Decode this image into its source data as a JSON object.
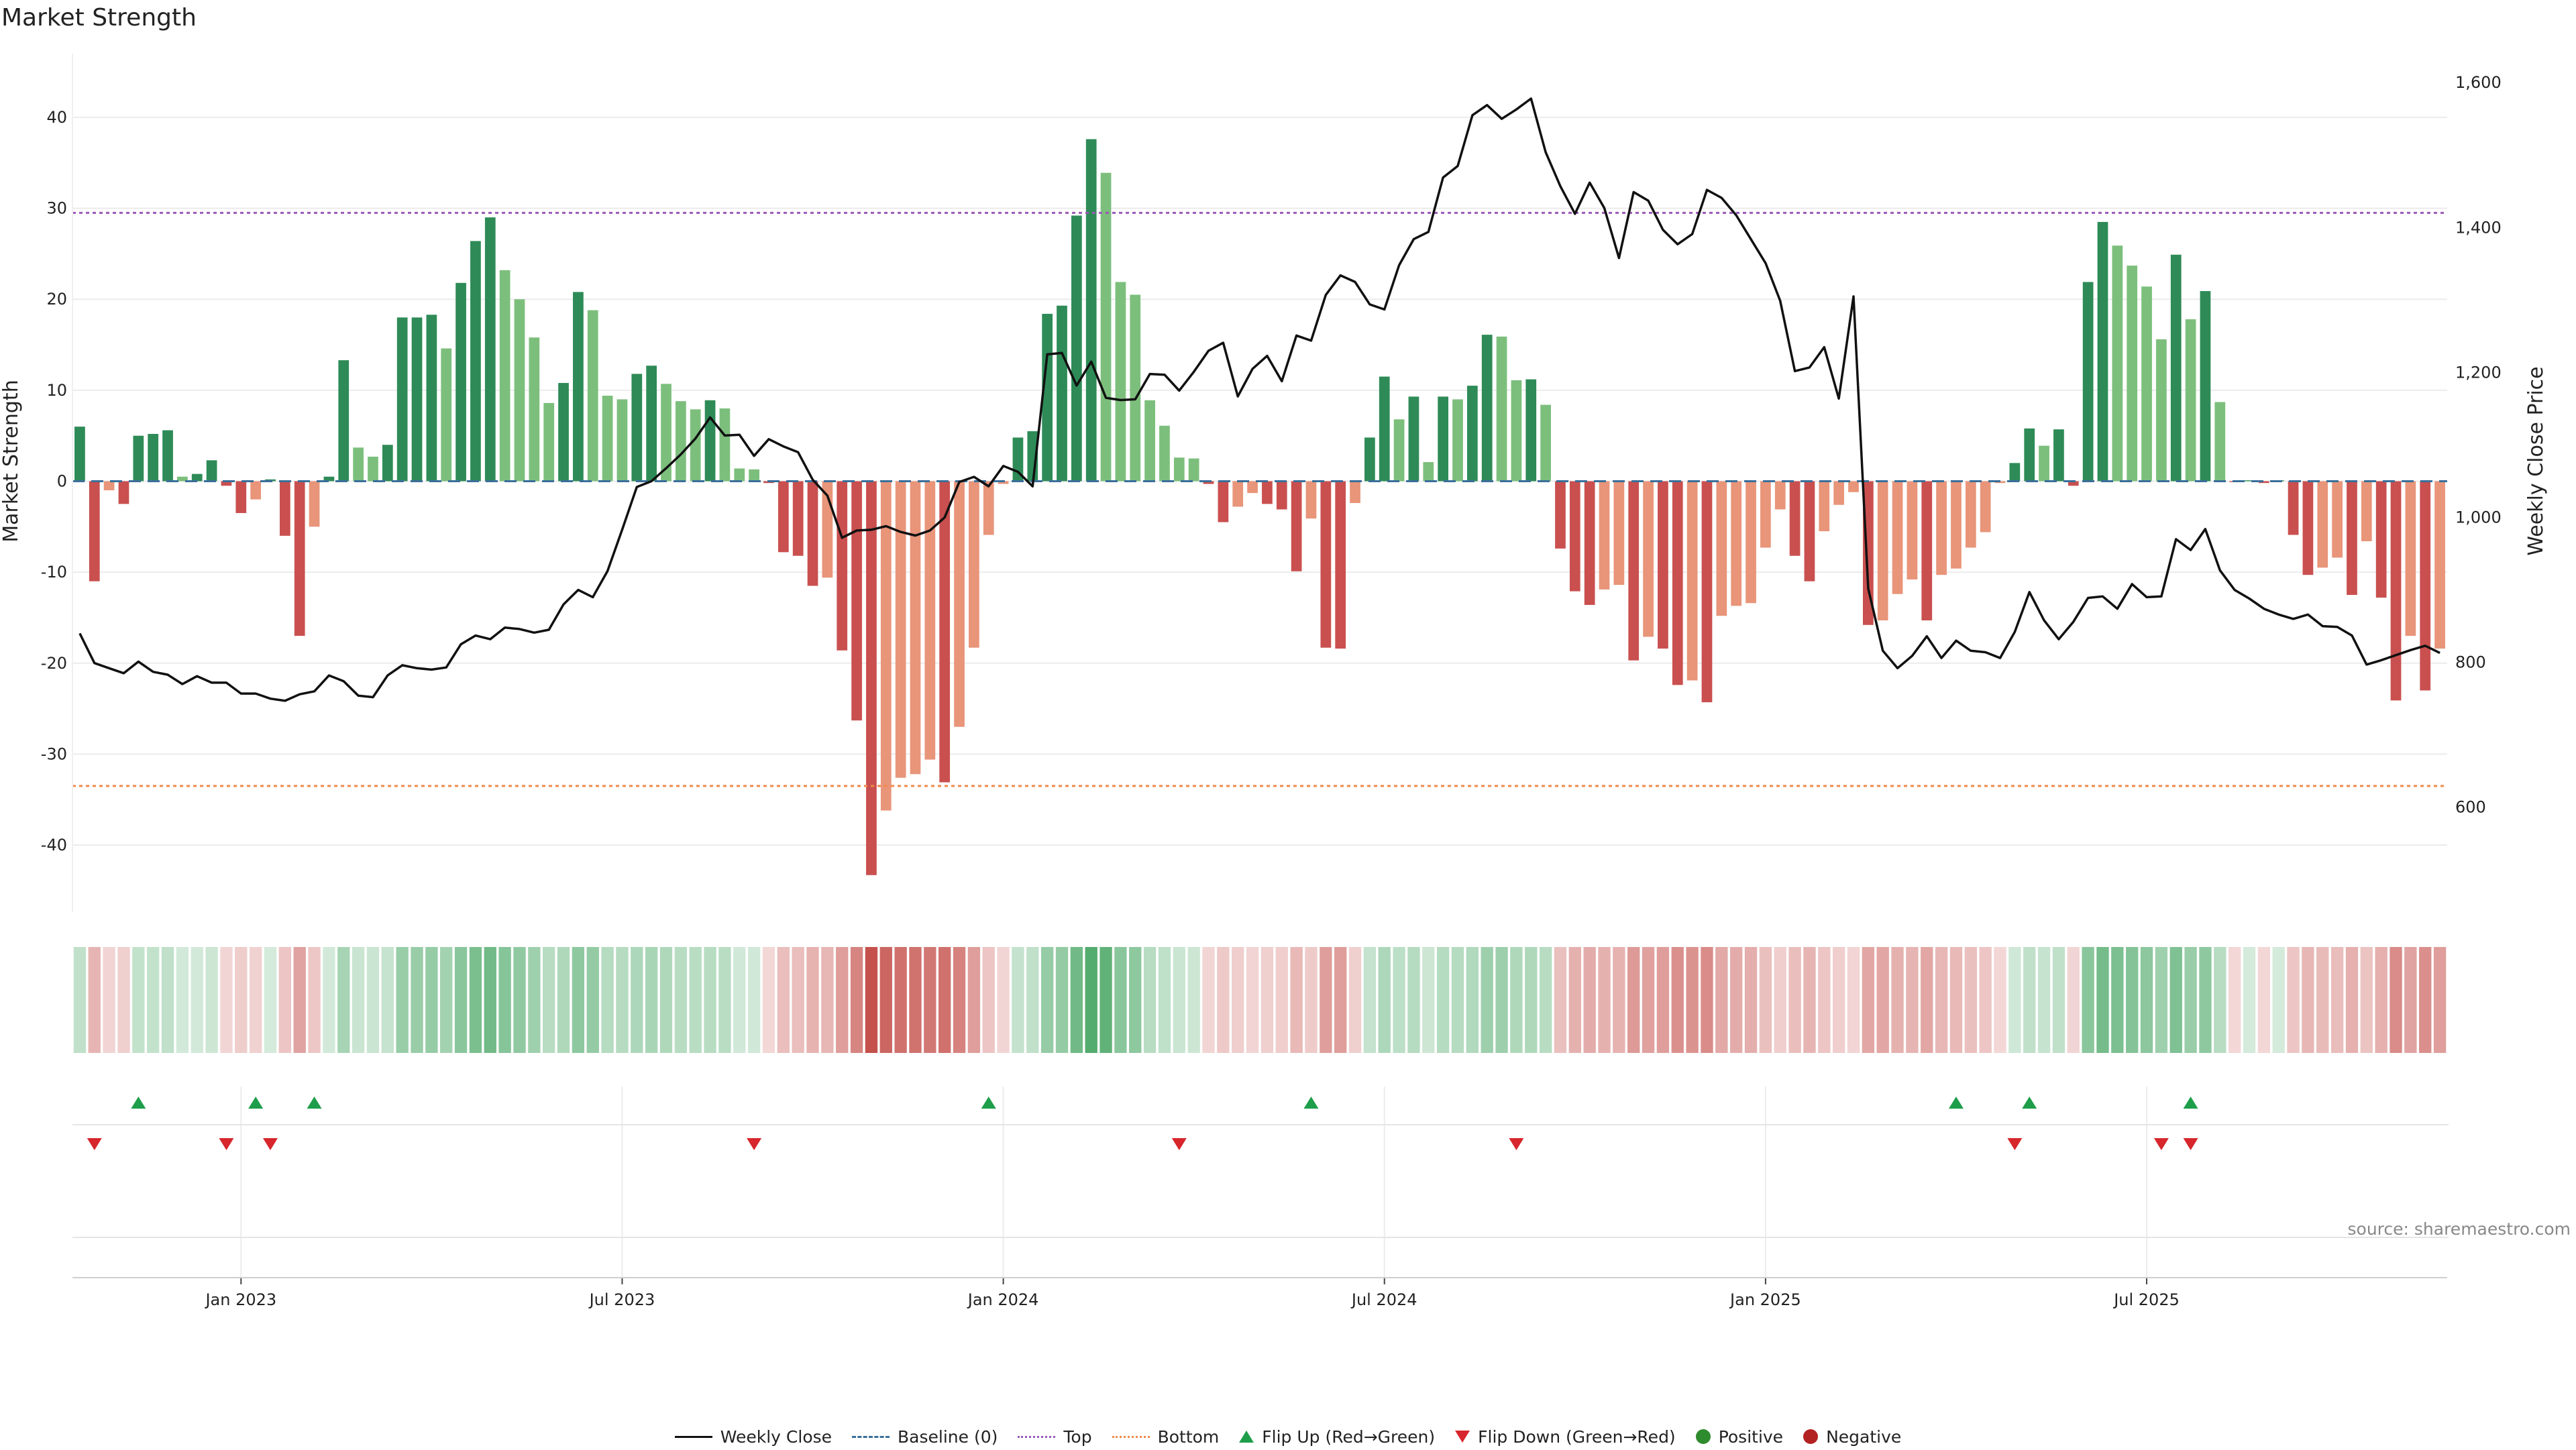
{
  "title": "Market Strength",
  "source": "source: sharemaestro.com",
  "colors": {
    "pos_strong": "#2e8b57",
    "pos_light": "#7cbf7c",
    "neg_strong": "#c9504f",
    "neg_light": "#e8957a",
    "top_line": "#9b59b6",
    "bottom_line": "#f08a4b",
    "baseline": "#3a6f9a",
    "price_line": "#111111",
    "flip_up": "#1e9e4a",
    "flip_down": "#d7262c"
  },
  "legend": [
    {
      "id": "weekly-close",
      "label": "Weekly Close",
      "marker": "line"
    },
    {
      "id": "baseline",
      "label": "Baseline (0)",
      "marker": "dash"
    },
    {
      "id": "top",
      "label": "Top",
      "marker": "dot-purple"
    },
    {
      "id": "bottom",
      "label": "Bottom",
      "marker": "dot-orange"
    },
    {
      "id": "flip-up",
      "label": "Flip Up (Red→Green)",
      "marker": "tri-up"
    },
    {
      "id": "flip-down",
      "label": "Flip Down (Green→Red)",
      "marker": "tri-down"
    },
    {
      "id": "positive",
      "label": "Positive",
      "marker": "circle-green"
    },
    {
      "id": "negative",
      "label": "Negative",
      "marker": "circle-red"
    }
  ],
  "chart_data": {
    "type": "bar",
    "title": "Market Strength",
    "ylabel": "Market Strength",
    "y2label": "Weekly Close Price",
    "ylim": [
      -47,
      47
    ],
    "y2lim": [
      460,
      1640
    ],
    "yticks": [
      40,
      30,
      20,
      10,
      0,
      -10,
      -20,
      -30,
      -40
    ],
    "y2ticks": [
      {
        "v": 1600,
        "label": "1,600"
      },
      {
        "v": 1400,
        "label": "1,400"
      },
      {
        "v": 1200,
        "label": "1,200"
      },
      {
        "v": 1000,
        "label": "1,000"
      },
      {
        "v": 800,
        "label": "800"
      },
      {
        "v": 600,
        "label": "600"
      }
    ],
    "top_level": 29.5,
    "bottom_level": -33.5,
    "xticks": [
      {
        "week": 11,
        "label": "Jan 2023"
      },
      {
        "week": 37,
        "label": "Jul 2023"
      },
      {
        "week": 63,
        "label": "Jan 2024"
      },
      {
        "week": 89,
        "label": "Jul 2024"
      },
      {
        "week": 115,
        "label": "Jan 2025"
      },
      {
        "week": 141,
        "label": "Jul 2025"
      }
    ],
    "strength": [
      6,
      -11,
      -1,
      -2.5,
      5,
      5.2,
      5.6,
      0.5,
      0.8,
      2.3,
      -0.5,
      -3.5,
      -2,
      0.2,
      -6,
      -17,
      -5,
      0.5,
      13.3,
      3.7,
      2.7,
      4,
      18,
      18,
      18.3,
      14.6,
      21.8,
      26.4,
      29,
      23.2,
      20,
      15.8,
      8.6,
      10.8,
      20.8,
      18.8,
      9.4,
      9,
      11.8,
      12.7,
      10.7,
      8.8,
      7.9,
      8.9,
      8,
      1.4,
      1.3,
      -0.2,
      -7.8,
      -8.2,
      -11.5,
      -10.6,
      -18.6,
      -26.3,
      -43.3,
      -36.2,
      -32.6,
      -32.2,
      -30.6,
      -33.1,
      -27,
      -18.3,
      -5.9,
      -0.3,
      4.8,
      5.5,
      18.4,
      19.3,
      29.2,
      37.6,
      33.9,
      21.9,
      20.5,
      8.9,
      6.1,
      2.6,
      2.5,
      -0.3,
      -4.5,
      -2.8,
      -1.3,
      -2.5,
      -3.1,
      -9.9,
      -4.1,
      -18.3,
      -18.4,
      -2.4,
      4.8,
      11.5,
      6.8,
      9.3,
      2.1,
      9.3,
      9,
      10.5,
      16.1,
      15.9,
      11.1,
      11.2,
      8.4,
      -7.4,
      -12.1,
      -13.6,
      -11.9,
      -11.4,
      -19.7,
      -17.1,
      -18.4,
      -22.4,
      -21.9,
      -24.3,
      -14.8,
      -13.7,
      -13.4,
      -7.3,
      -3.1,
      -8.2,
      -11,
      -5.5,
      -2.6,
      -1.2,
      -15.8,
      -15.3,
      -12.4,
      -10.8,
      -15.3,
      -10.3,
      -9.6,
      -7.3,
      -5.6,
      -0.2,
      2,
      5.8,
      3.9,
      5.7,
      -0.5,
      21.9,
      28.5,
      25.9,
      23.7,
      21.4,
      15.6,
      24.9,
      17.8,
      20.9,
      8.7,
      -0.1,
      0.1,
      -0.2,
      0.1,
      -5.9,
      -10.3,
      -9.5,
      -8.4,
      -12.5,
      -6.6,
      -12.8,
      -24.1,
      -17,
      -23,
      -18.4
    ],
    "price": [
      840,
      799,
      792,
      785,
      801,
      787,
      783,
      770,
      781,
      772,
      772,
      757,
      757,
      750,
      747,
      756,
      760,
      782,
      774,
      754,
      752,
      782,
      796,
      792,
      790,
      793,
      825,
      837,
      832,
      848,
      846,
      841,
      845,
      880,
      900,
      890,
      926,
      983,
      1042,
      1050,
      1068,
      1087,
      1109,
      1138,
      1113,
      1114,
      1085,
      1108,
      1098,
      1090,
      1052,
      1030,
      972,
      982,
      983,
      988,
      980,
      975,
      982,
      1000,
      1049,
      1056,
      1043,
      1071,
      1063,
      1043,
      1225,
      1227,
      1182,
      1215,
      1165,
      1162,
      1163,
      1198,
      1197,
      1175,
      1201,
      1230,
      1241,
      1167,
      1205,
      1223,
      1188,
      1251,
      1244,
      1307,
      1334,
      1325,
      1294,
      1287,
      1348,
      1384,
      1394,
      1469,
      1485,
      1555,
      1569,
      1550,
      1563,
      1578,
      1504,
      1457,
      1419,
      1462,
      1427,
      1358,
      1449,
      1437,
      1397,
      1377,
      1391,
      1452,
      1441,
      1417,
      1384,
      1351,
      1299,
      1202,
      1207,
      1235,
      1164,
      1305,
      902,
      816,
      792,
      809,
      836,
      806,
      830,
      816,
      814,
      806,
      842,
      897,
      858,
      832,
      856,
      889,
      891,
      874,
      908,
      890,
      891,
      970,
      955,
      984,
      927,
      900,
      888,
      874,
      866,
      860,
      866,
      850,
      849,
      837,
      797,
      803,
      810,
      817,
      823,
      813
    ]
  },
  "flip_up_weeks": [
    4,
    12,
    16,
    62,
    84,
    128,
    133,
    144
  ],
  "flip_down_weeks": [
    1,
    10,
    13,
    46,
    75,
    98,
    132,
    142,
    144
  ]
}
